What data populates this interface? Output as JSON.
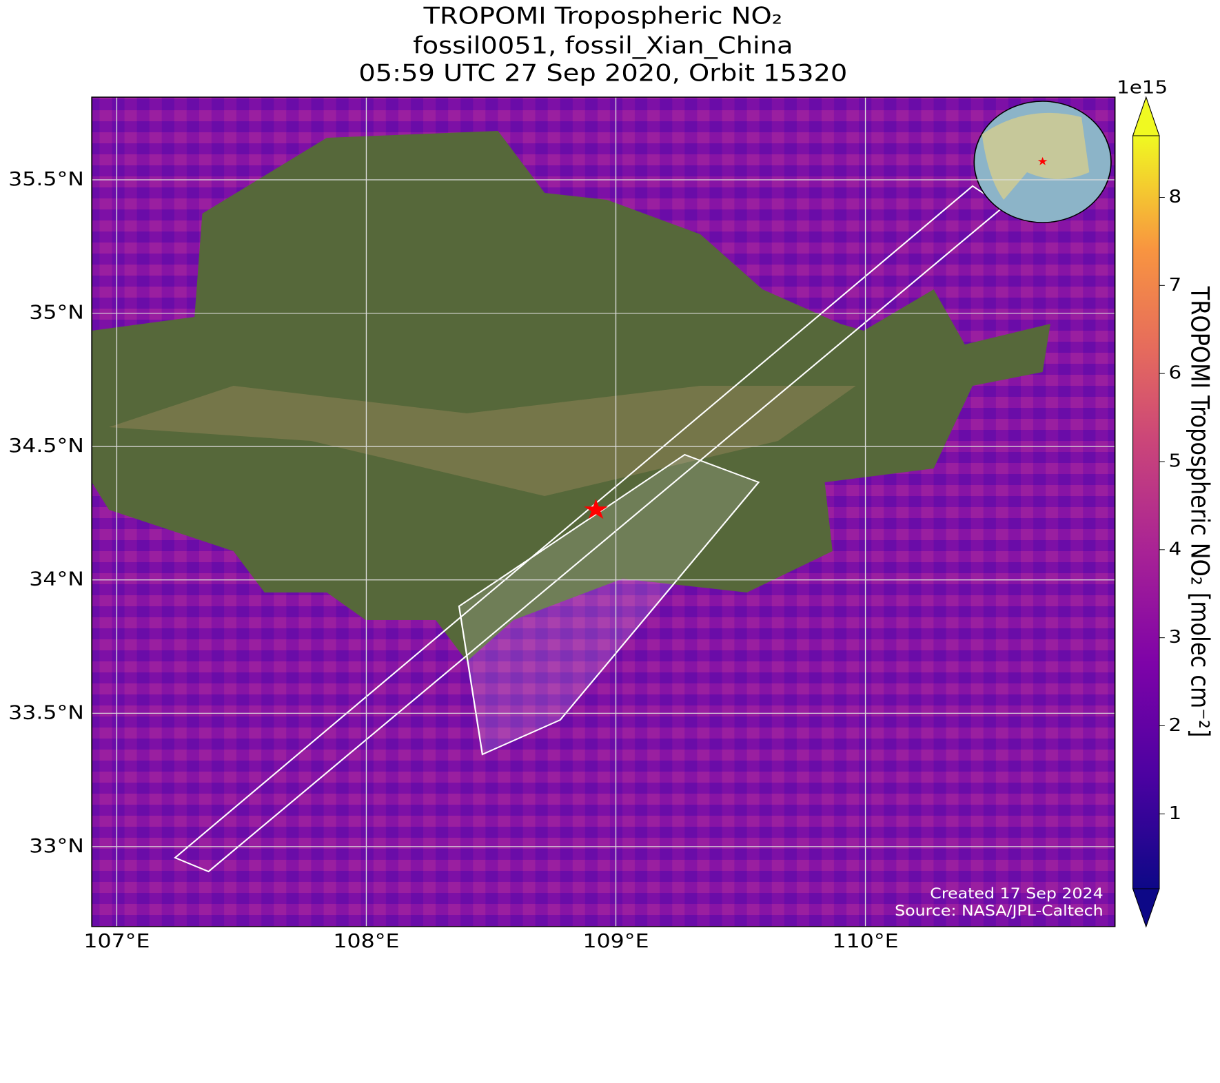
{
  "chart_data": {
    "type": "map",
    "title": [
      "TROPOMI Tropospheric NO₂",
      "fossil0051, fossil_Xian_China",
      "05:59 UTC 27 Sep 2020, Orbit 15320"
    ],
    "xlim": [
      106.9,
      111.0
    ],
    "ylim": [
      32.7,
      35.81
    ],
    "xticks": [
      {
        "value": 107,
        "label": "107°E"
      },
      {
        "value": 108,
        "label": "108°E"
      },
      {
        "value": 109,
        "label": "109°E"
      },
      {
        "value": 110,
        "label": "110°E"
      }
    ],
    "yticks": [
      {
        "value": 33,
        "label": "33°N"
      },
      {
        "value": 33.5,
        "label": "33.5°N"
      },
      {
        "value": 34,
        "label": "34°N"
      },
      {
        "value": 34.5,
        "label": "34.5°N"
      },
      {
        "value": 35,
        "label": "35°N"
      },
      {
        "value": 35.5,
        "label": "35.5°N"
      }
    ],
    "grid": true,
    "colorbar": {
      "label": "TROPOMI Tropospheric NO₂ [molec cm⁻²]",
      "offset_label": "1e15",
      "lim": [
        0.15,
        8.7
      ],
      "ticks": [
        1,
        2,
        3,
        4,
        5,
        6,
        7,
        8
      ],
      "colormap": "plasma"
    },
    "annotations": [
      "Created 17 Sep 2024",
      "Source: NASA/JPL-Caltech"
    ]
  }
}
